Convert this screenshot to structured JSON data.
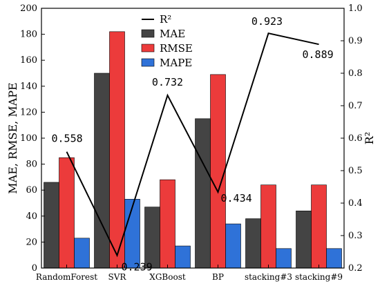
{
  "chart_data": {
    "type": "bar",
    "categories": [
      "RandomForest",
      "SVR",
      "XGBoost",
      "BP",
      "stacking#3",
      "stacking#9"
    ],
    "series": [
      {
        "name": "MAE",
        "values": [
          66,
          150,
          47,
          115,
          38,
          44
        ],
        "color": "#444444",
        "axis": "left"
      },
      {
        "name": "RMSE",
        "values": [
          85,
          182,
          68,
          149,
          64,
          64
        ],
        "color": "#ec3b3b",
        "axis": "left"
      },
      {
        "name": "MAPE",
        "values": [
          23,
          53,
          17,
          34,
          15,
          15
        ],
        "color": "#2f72d8",
        "axis": "left"
      }
    ],
    "line_series": {
      "name": "R²",
      "type": "line",
      "axis": "right",
      "values": [
        0.558,
        0.239,
        0.732,
        0.434,
        0.923,
        0.889
      ],
      "labels": [
        "0.558",
        "0.239",
        "0.732",
        "0.434",
        "0.923",
        "0.889"
      ],
      "color": "#000000"
    },
    "ylabel": "MAE, RMSE, MAPE",
    "y2label": "R²",
    "xlabel": "",
    "ylim": [
      0,
      200
    ],
    "yticks": [
      0,
      20,
      40,
      60,
      80,
      100,
      120,
      140,
      160,
      180,
      200
    ],
    "y2lim": [
      0.2,
      1.0
    ],
    "y2ticks": [
      "0.2",
      "0.3",
      "0.4",
      "0.5",
      "0.6",
      "0.7",
      "0.8",
      "0.9",
      "1.0"
    ],
    "legend_position": "top-center",
    "grid": false
  }
}
